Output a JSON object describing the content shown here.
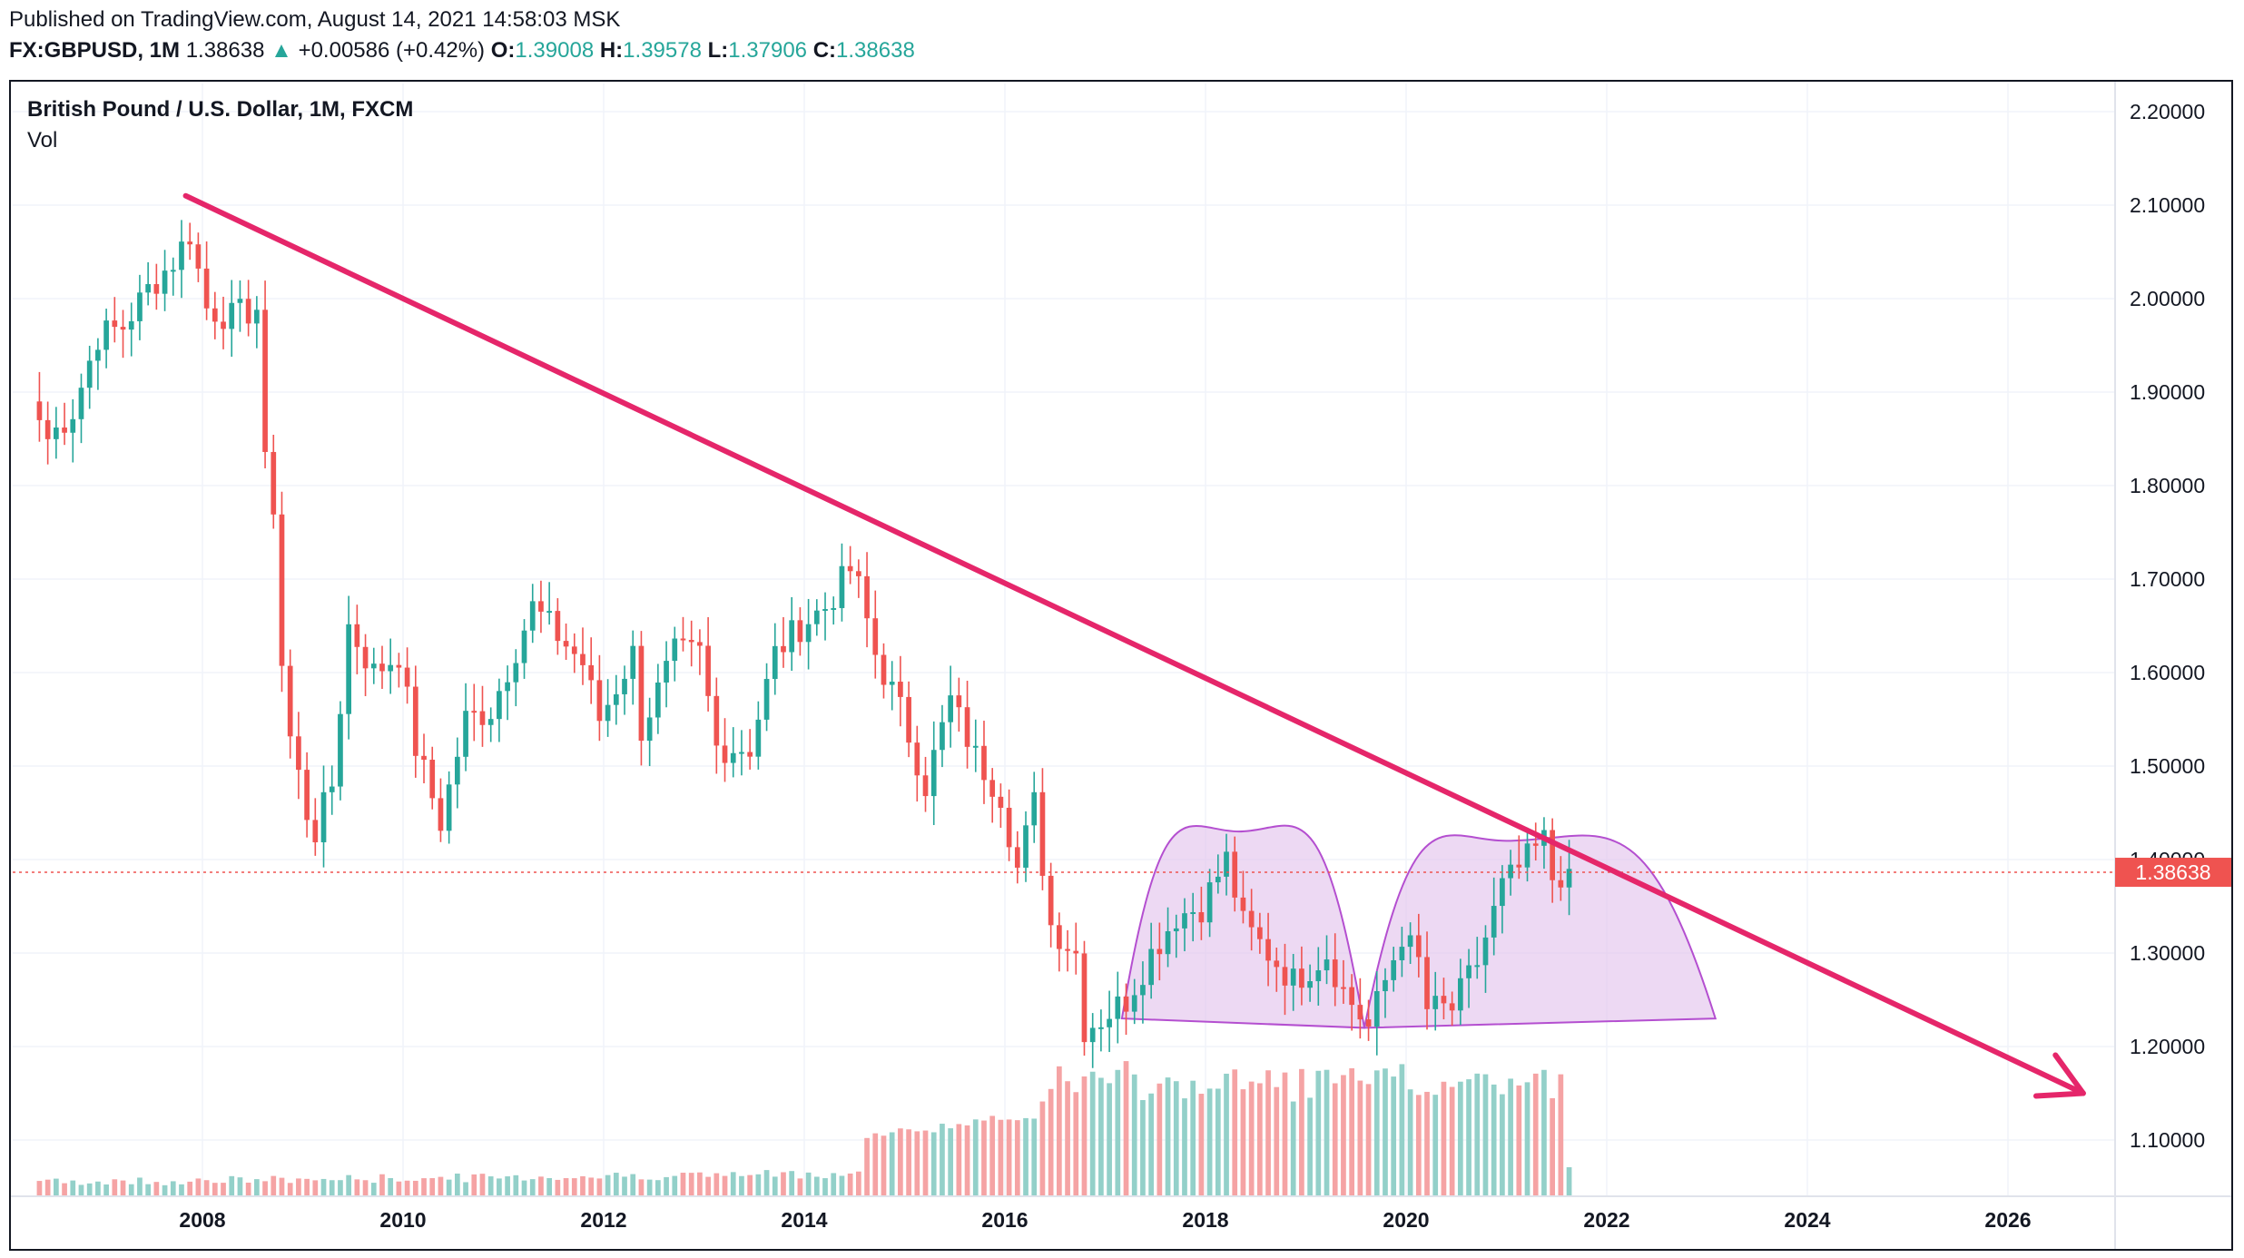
{
  "header": {
    "published": "Published on TradingView.com, August 14, 2021 14:58:03 MSK",
    "symbol": "FX:GBPUSD, 1M",
    "last": "1.38638",
    "up_arrow": "▲",
    "change": "+0.00586 (+0.42%)",
    "o_label": "O:",
    "o_value": "1.39008",
    "h_label": "H:",
    "h_value": "1.39578",
    "l_label": "L:",
    "l_value": "1.37906",
    "c_label": "C:",
    "c_value": "1.38638"
  },
  "legend": {
    "title": "British Pound / U.S. Dollar, 1M, FXCM",
    "vol": "Vol"
  },
  "colors": {
    "up": "#26a69a",
    "down": "#ef5350",
    "vol_up": "#93d0c9",
    "vol_down": "#f5a3a4",
    "trendline": "#e5266a",
    "pattern_fill": "#e3c4ec",
    "pattern_stroke": "#b44fd0",
    "price_line": "#ef5350"
  },
  "chart_data": {
    "type": "candlestick",
    "title": "British Pound / U.S. Dollar, 1M, FXCM",
    "y_axis_ticks": [
      "2.20000",
      "2.10000",
      "2.00000",
      "1.90000",
      "1.80000",
      "1.70000",
      "1.60000",
      "1.50000",
      "1.40000",
      "1.30000",
      "1.20000",
      "1.10000"
    ],
    "x_axis_ticks": [
      "2008",
      "2010",
      "2012",
      "2014",
      "2016",
      "2018",
      "2020",
      "2022",
      "2024",
      "2026"
    ],
    "ylim": [
      1.03,
      2.24
    ],
    "current_price": "1.38638",
    "series_keypoints": [
      {
        "date": "2006-05",
        "close": 1.87
      },
      {
        "date": "2006-06",
        "close": 1.85
      },
      {
        "date": "2006-09",
        "close": 1.88
      },
      {
        "date": "2006-12",
        "close": 1.96
      },
      {
        "date": "2007-03",
        "close": 1.97
      },
      {
        "date": "2007-06",
        "close": 2.01
      },
      {
        "date": "2007-09",
        "close": 2.04
      },
      {
        "date": "2007-11",
        "close": 2.07
      },
      {
        "date": "2008-01",
        "close": 1.99
      },
      {
        "date": "2008-04",
        "close": 1.98
      },
      {
        "date": "2008-07",
        "close": 1.99
      },
      {
        "date": "2008-08",
        "close": 1.82
      },
      {
        "date": "2008-09",
        "close": 1.78
      },
      {
        "date": "2008-10",
        "close": 1.61
      },
      {
        "date": "2008-11",
        "close": 1.53
      },
      {
        "date": "2009-01",
        "close": 1.45
      },
      {
        "date": "2009-02",
        "close": 1.43
      },
      {
        "date": "2009-04",
        "close": 1.48
      },
      {
        "date": "2009-06",
        "close": 1.65
      },
      {
        "date": "2009-09",
        "close": 1.6
      },
      {
        "date": "2009-12",
        "close": 1.62
      },
      {
        "date": "2010-02",
        "close": 1.52
      },
      {
        "date": "2010-05",
        "close": 1.44
      },
      {
        "date": "2010-08",
        "close": 1.55
      },
      {
        "date": "2010-11",
        "close": 1.56
      },
      {
        "date": "2011-04",
        "close": 1.67
      },
      {
        "date": "2011-07",
        "close": 1.64
      },
      {
        "date": "2011-10",
        "close": 1.61
      },
      {
        "date": "2011-12",
        "close": 1.55
      },
      {
        "date": "2012-04",
        "close": 1.62
      },
      {
        "date": "2012-05",
        "close": 1.54
      },
      {
        "date": "2012-09",
        "close": 1.62
      },
      {
        "date": "2012-12",
        "close": 1.62
      },
      {
        "date": "2013-02",
        "close": 1.52
      },
      {
        "date": "2013-06",
        "close": 1.52
      },
      {
        "date": "2013-09",
        "close": 1.62
      },
      {
        "date": "2013-12",
        "close": 1.65
      },
      {
        "date": "2014-03",
        "close": 1.67
      },
      {
        "date": "2014-06",
        "close": 1.71
      },
      {
        "date": "2014-07",
        "close": 1.69
      },
      {
        "date": "2014-09",
        "close": 1.62
      },
      {
        "date": "2014-12",
        "close": 1.56
      },
      {
        "date": "2015-03",
        "close": 1.48
      },
      {
        "date": "2015-06",
        "close": 1.57
      },
      {
        "date": "2015-09",
        "close": 1.51
      },
      {
        "date": "2015-12",
        "close": 1.47
      },
      {
        "date": "2016-02",
        "close": 1.39
      },
      {
        "date": "2016-04",
        "close": 1.46
      },
      {
        "date": "2016-06",
        "close": 1.33
      },
      {
        "date": "2016-09",
        "close": 1.3
      },
      {
        "date": "2016-10",
        "close": 1.22
      },
      {
        "date": "2016-12",
        "close": 1.23
      },
      {
        "date": "2017-03",
        "close": 1.25
      },
      {
        "date": "2017-06",
        "close": 1.3
      },
      {
        "date": "2017-09",
        "close": 1.34
      },
      {
        "date": "2017-12",
        "close": 1.35
      },
      {
        "date": "2018-03",
        "close": 1.4
      },
      {
        "date": "2018-05",
        "close": 1.33
      },
      {
        "date": "2018-08",
        "close": 1.3
      },
      {
        "date": "2018-11",
        "close": 1.27
      },
      {
        "date": "2019-03",
        "close": 1.3
      },
      {
        "date": "2019-05",
        "close": 1.26
      },
      {
        "date": "2019-08",
        "close": 1.22
      },
      {
        "date": "2019-12",
        "close": 1.32
      },
      {
        "date": "2020-02",
        "close": 1.29
      },
      {
        "date": "2020-03",
        "close": 1.24
      },
      {
        "date": "2020-06",
        "close": 1.24
      },
      {
        "date": "2020-09",
        "close": 1.29
      },
      {
        "date": "2020-12",
        "close": 1.37
      },
      {
        "date": "2021-02",
        "close": 1.39
      },
      {
        "date": "2021-05",
        "close": 1.42
      },
      {
        "date": "2021-06",
        "close": 1.38
      },
      {
        "date": "2021-08",
        "close": 1.39
      }
    ],
    "trendline": {
      "from": {
        "date": "2007-11",
        "value": 2.11
      },
      "to": {
        "date": "2026-10",
        "value": 1.15
      }
    },
    "pattern_arcs": [
      {
        "start": {
          "date": "2017-03",
          "value": 1.23
        },
        "peak": {
          "date": "2018-05",
          "value": 1.43
        },
        "end": {
          "date": "2019-08",
          "value": 1.22
        }
      },
      {
        "start": {
          "date": "2019-08",
          "value": 1.22
        },
        "peak": {
          "date": "2021-01",
          "value": 1.42
        },
        "end": {
          "date": "2023-02",
          "value": 1.23
        }
      }
    ]
  }
}
